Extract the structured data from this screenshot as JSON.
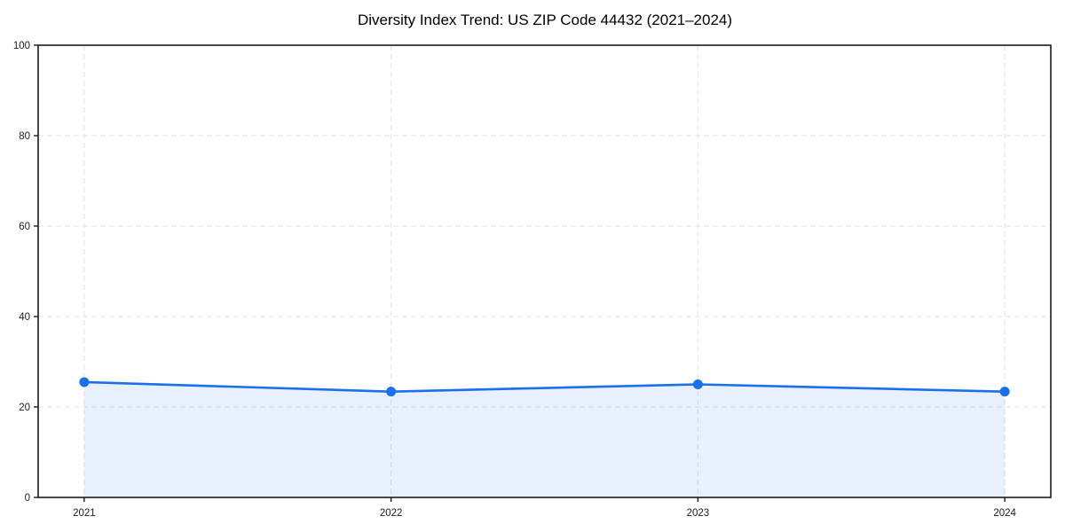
{
  "chart_data": {
    "type": "line",
    "title": "Diversity Index Trend: US ZIP Code 44432 (2021–2024)",
    "x": [
      2021,
      2022,
      2023,
      2024
    ],
    "x_tick_labels": [
      "2021",
      "2022",
      "2023",
      "2024"
    ],
    "series": [
      {
        "name": "Diversity Index",
        "values": [
          25.5,
          23.4,
          25.0,
          23.4
        ]
      }
    ],
    "xlabel": "",
    "ylabel": "",
    "xlim": [
      2020.85,
      2024.15
    ],
    "ylim": [
      0,
      100
    ],
    "y_ticks": [
      0,
      20,
      40,
      60,
      80,
      100
    ],
    "grid": "dashed",
    "legend": "none",
    "area_fill": true,
    "marker": "circle",
    "colors": {
      "line": "#1a70e8",
      "marker": "#1a70e8",
      "area_fill": "rgba(26,112,232,0.10)",
      "grid": "#e2e2e2",
      "spine": "#1a1a1a",
      "tick_label": "#1a1a1a",
      "title": "#000000",
      "background": "#ffffff"
    }
  }
}
